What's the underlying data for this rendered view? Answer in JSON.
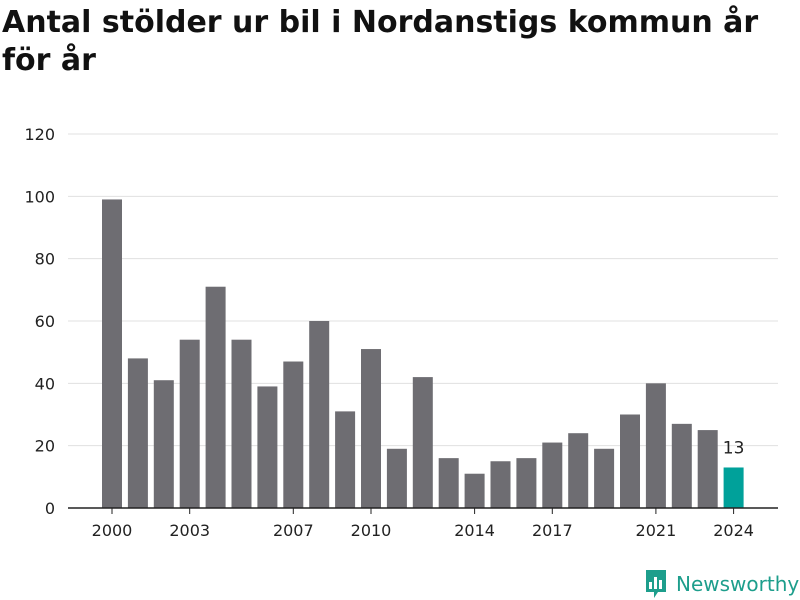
{
  "title": "Antal stölder ur bil i Nordanstigs kommun år för år",
  "brand": {
    "name": "Newsworthy",
    "color": "#1d9e8c",
    "icon": "newsworthy-chart-icon"
  },
  "colors": {
    "bar": "#6e6d72",
    "highlight": "#00a19a",
    "grid": "#e0e0e0"
  },
  "chart_data": {
    "type": "bar",
    "categories": [
      "2000",
      "2001",
      "2002",
      "2003",
      "2004",
      "2005",
      "2006",
      "2007",
      "2008",
      "2009",
      "2010",
      "2011",
      "2012",
      "2013",
      "2014",
      "2015",
      "2016",
      "2017",
      "2018",
      "2019",
      "2020",
      "2021",
      "2022",
      "2023",
      "2024"
    ],
    "values": [
      99,
      48,
      41,
      54,
      71,
      54,
      39,
      47,
      60,
      31,
      51,
      19,
      42,
      16,
      11,
      15,
      16,
      21,
      24,
      19,
      30,
      40,
      27,
      25,
      13
    ],
    "highlight_index": 24,
    "highlight_label": "13",
    "x_tick_labels": [
      "2000",
      "2003",
      "2007",
      "2010",
      "2014",
      "2017",
      "2021",
      "2024"
    ],
    "y_ticks": [
      0,
      20,
      40,
      60,
      80,
      100,
      120
    ],
    "ylim": [
      0,
      120
    ],
    "grid": true
  }
}
